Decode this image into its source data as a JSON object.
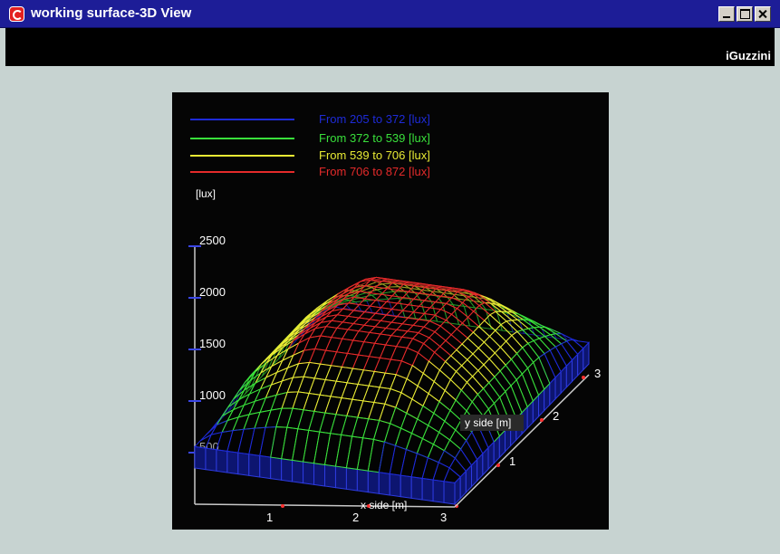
{
  "window": {
    "title": "working surface-3D View",
    "brand": "iGuzzini",
    "app_icon": "iguzzini-app-icon",
    "buttons": [
      "minimize-icon",
      "maximize-icon",
      "close-icon"
    ]
  },
  "legend": [
    {
      "label": "From  205 to  372 [lux]",
      "color": "#1e2bd8"
    },
    {
      "label": "From  372 to  539 [lux]",
      "color": "#39e03b"
    },
    {
      "label": "From  539 to  706 [lux]",
      "color": "#e8ea34"
    },
    {
      "label": "From  706 to  872 [lux]",
      "color": "#e42a2a"
    }
  ],
  "chart_data": {
    "type": "surface",
    "unit_label": "[lux]",
    "z_ticks": [
      {
        "value": 2500,
        "label": "2500"
      },
      {
        "value": 2000,
        "label": "2000"
      },
      {
        "value": 1500,
        "label": "1500"
      },
      {
        "value": 1000,
        "label": "1000"
      },
      {
        "value": 500,
        "label": "500"
      }
    ],
    "x_label": "x side [m]",
    "x_ticks": [
      "1",
      "2",
      "3"
    ],
    "y_label": "y side [m]",
    "y_ticks": [
      "1",
      "2",
      "3"
    ],
    "zlim": [
      0,
      2500
    ],
    "illuminance_bands_lux": [
      205,
      372,
      539,
      706,
      872
    ]
  },
  "colors": {
    "background": "#c7d3d1",
    "titlebar": "#1d1d97",
    "axis": "#c9c9c9"
  }
}
